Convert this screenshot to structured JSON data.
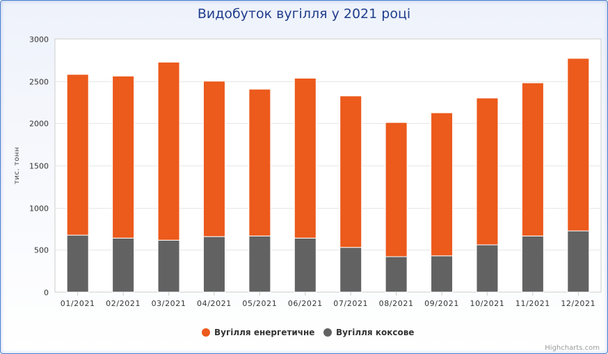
{
  "chart_data": {
    "type": "bar",
    "stacked": true,
    "title": "Видобуток вугілля у 2021 році",
    "ylabel": "тис. тонн",
    "xlabel": "",
    "ylim": [
      0,
      3000
    ],
    "yticks": [
      0,
      500,
      1000,
      1500,
      2000,
      2500,
      3000
    ],
    "grid": true,
    "legend_position": "bottom",
    "categories": [
      "01/2021",
      "02/2021",
      "03/2021",
      "04/2021",
      "05/2021",
      "06/2021",
      "07/2021",
      "08/2021",
      "09/2021",
      "10/2021",
      "11/2021",
      "12/2021"
    ],
    "series": [
      {
        "name": "Вугілля коксове",
        "color": "#626262",
        "values": [
          675,
          640,
          615,
          658,
          665,
          640,
          530,
          420,
          430,
          560,
          665,
          725
        ]
      },
      {
        "name": "Вугілля енергетичне",
        "color": "#ec5a1c",
        "values": [
          1905,
          1920,
          2110,
          1842,
          1740,
          1895,
          1795,
          1590,
          1695,
          1740,
          1815,
          2045
        ]
      }
    ]
  },
  "legend_order": [
    1,
    0
  ],
  "credits": "Highcharts.com"
}
